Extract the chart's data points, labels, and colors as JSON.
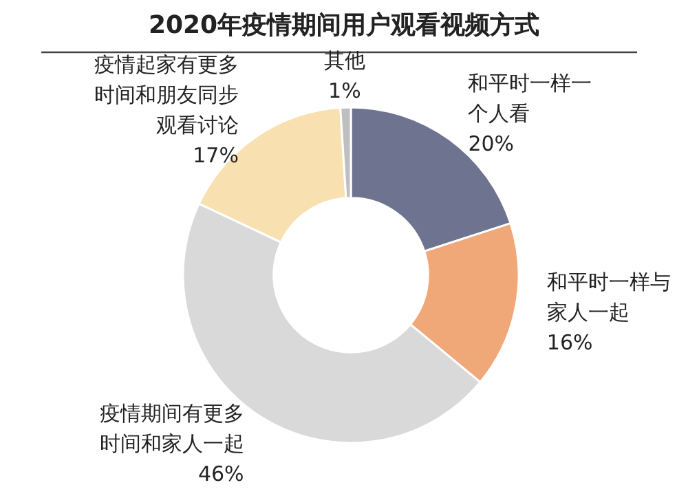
{
  "chart_data": {
    "type": "donut",
    "title": "2020年疫情期间用户观看视频方式",
    "categories": [
      "和平时一样一个人看",
      "和平时一样与家人一起",
      "疫情期间有更多时间和家人一起",
      "疫情起家有更多时间和朋友同步观看讨论",
      "其他"
    ],
    "values": [
      20,
      16,
      46,
      17,
      1
    ],
    "colors": [
      "#6e7490",
      "#f0a878",
      "#d9d9d9",
      "#f8e0b0",
      "#bfbfbf"
    ],
    "value_labels": [
      "20%",
      "16%",
      "46%",
      "17%",
      "1%"
    ]
  }
}
